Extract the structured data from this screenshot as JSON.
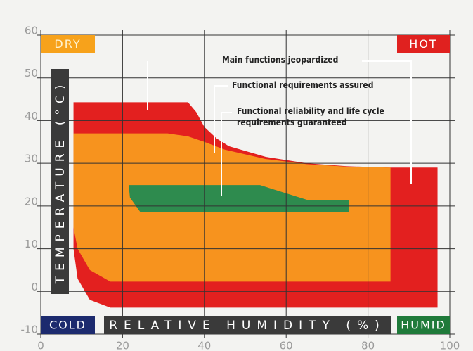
{
  "chart_data": {
    "type": "region",
    "xlim": [
      0,
      100
    ],
    "ylim": [
      -10,
      60
    ],
    "xticks": [
      0,
      20,
      40,
      60,
      80,
      100
    ],
    "yticks": [
      -10,
      0,
      10,
      20,
      30,
      40,
      50,
      60
    ],
    "grid": true,
    "xlabel": "RELATIVE HUMIDITY (%)",
    "ylabel": "TEMPERATURE (°C)",
    "corner_labels": [
      {
        "text": "DRY",
        "color": "#f7a21b",
        "corner": "top-left"
      },
      {
        "text": "HOT",
        "color": "#e0211f",
        "corner": "top-right"
      },
      {
        "text": "COLD",
        "color": "#1c2a6e",
        "corner": "bottom-left"
      },
      {
        "text": "HUMID",
        "color": "#1f7a3a",
        "corner": "bottom-right"
      }
    ],
    "series": [
      {
        "name": "Main functions jeopardized",
        "color": "#e3201f",
        "x": [
          8,
          36,
          38,
          40,
          43,
          46,
          55,
          65,
          75,
          85.5,
          97,
          97,
          17,
          12,
          9,
          8
        ],
        "y": [
          44.3,
          44.3,
          42,
          38.5,
          35.8,
          34,
          31.5,
          30,
          29.3,
          29,
          29,
          -3.8,
          -3.8,
          -2,
          3,
          10
        ]
      },
      {
        "name": "Functional requirements assured",
        "color": "#f7931e",
        "x": [
          8,
          31,
          36,
          40,
          45,
          55,
          65,
          75,
          85.5,
          85.5,
          17,
          12,
          9,
          8
        ],
        "y": [
          37,
          37,
          36.3,
          35,
          33.2,
          31,
          29.8,
          29.2,
          29,
          2.3,
          2.3,
          5,
          10,
          15
        ]
      },
      {
        "name": "Functional reliability and life cycle requirements guaranteed",
        "color": "#2e8b4e",
        "x": [
          21.5,
          53.6,
          65.6,
          75.4,
          75.4,
          24.4,
          21.8
        ],
        "y": [
          24.9,
          24.9,
          21.3,
          21.3,
          18.5,
          18.5,
          22
        ]
      }
    ]
  }
}
